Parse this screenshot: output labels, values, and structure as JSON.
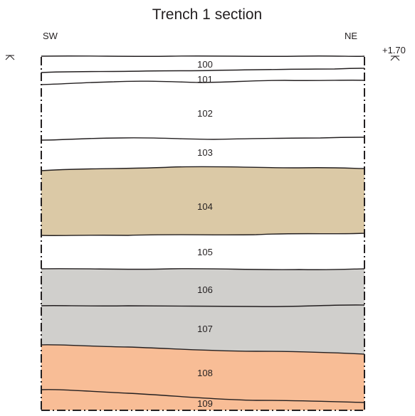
{
  "title": "Trench 1 section",
  "orientation": {
    "left": "SW",
    "right": "NE"
  },
  "datum_label": "+1.70",
  "colors": {
    "context_104": "#dbc9a6",
    "context_106": "#d0cfcc",
    "context_107": "#d0cfcc",
    "context_108": "#f8bd96",
    "context_109": "#f8bd96",
    "line": "#231f20"
  },
  "layers": [
    {
      "id": "100",
      "label": "100",
      "fill": "#ffffff"
    },
    {
      "id": "101",
      "label": "101",
      "fill": "#ffffff"
    },
    {
      "id": "102",
      "label": "102",
      "fill": "#ffffff"
    },
    {
      "id": "103",
      "label": "103",
      "fill": "#ffffff"
    },
    {
      "id": "104",
      "label": "104",
      "fill": "#dbc9a6"
    },
    {
      "id": "105",
      "label": "105",
      "fill": "#ffffff"
    },
    {
      "id": "106",
      "label": "106",
      "fill": "#d0cfcc"
    },
    {
      "id": "107",
      "label": "107",
      "fill": "#d0cfcc"
    },
    {
      "id": "108",
      "label": "108",
      "fill": "#f8bd96"
    },
    {
      "id": "109",
      "label": "109",
      "fill": "#f8bd96"
    }
  ]
}
